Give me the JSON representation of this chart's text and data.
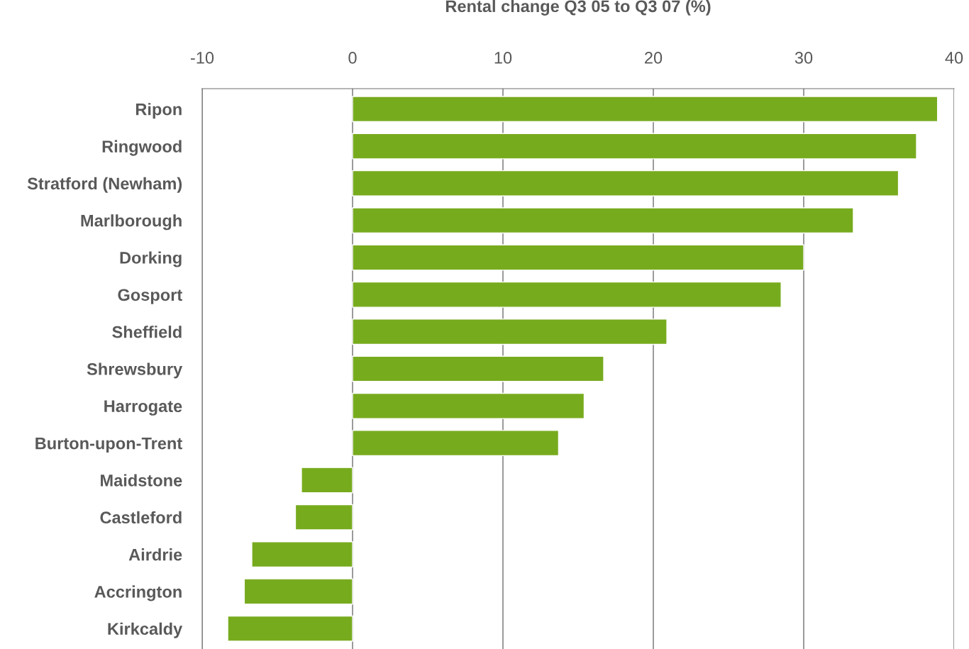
{
  "chart_data": {
    "type": "bar",
    "orientation": "horizontal",
    "xlabel": "Rental change Q3 05 to Q3 07 (%)",
    "categories": [
      "Ripon",
      "Ringwood",
      "Stratford (Newham)",
      "Marlborough",
      "Dorking",
      "Gosport",
      "Sheffield",
      "Shrewsbury",
      "Harrogate",
      "Burton-upon-Trent",
      "Maidstone",
      "Castleford",
      "Airdrie",
      "Accrington",
      "Kirkcaldy"
    ],
    "values": [
      38.9,
      37.5,
      36.3,
      33.3,
      30.0,
      28.5,
      20.9,
      16.7,
      15.4,
      13.7,
      -3.4,
      -3.8,
      -6.7,
      -7.2,
      -8.3
    ],
    "color": "#77ab1e",
    "xlim": [
      -10,
      40
    ],
    "xticks": [
      -10,
      0,
      10,
      20,
      30,
      40
    ],
    "grid": "x"
  }
}
